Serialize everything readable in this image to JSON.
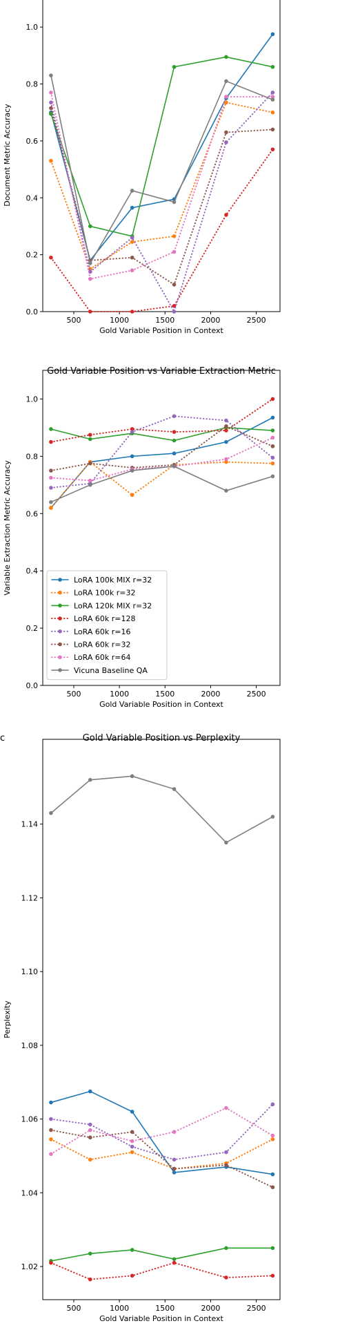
{
  "chart_data": [
    {
      "type": "line",
      "title": "",
      "panel_label": "",
      "xlabel": "Gold Variable Position in Context",
      "ylabel": "Document Metric Accuracy",
      "xlim": [
        160,
        2760
      ],
      "ylim": [
        0,
        1.1
      ],
      "xticks": [
        500,
        1000,
        1500,
        2000,
        2500
      ],
      "yticks": [
        0.0,
        0.2,
        0.4,
        0.6,
        0.8,
        1.0
      ],
      "grid": false,
      "x": [
        250,
        680,
        1140,
        1600,
        2170,
        2680
      ],
      "series": [
        {
          "name": "LoRA 100k MIX r=32",
          "values": [
            0.7,
            0.18,
            0.365,
            0.395,
            0.75,
            0.975
          ]
        },
        {
          "name": "LoRA 100k r=32",
          "values": [
            0.53,
            0.15,
            0.245,
            0.265,
            0.735,
            0.7
          ]
        },
        {
          "name": "LoRA 120k MIX r=32",
          "values": [
            0.695,
            0.3,
            0.265,
            0.86,
            0.895,
            0.86
          ]
        },
        {
          "name": "LoRA 60k r=128",
          "values": [
            0.19,
            0.0,
            0.0,
            0.02,
            0.34,
            0.57
          ]
        },
        {
          "name": "LoRA 60k r=16",
          "values": [
            0.735,
            0.14,
            0.26,
            0.0,
            0.595,
            0.77
          ]
        },
        {
          "name": "LoRA 60k r=32",
          "values": [
            0.715,
            0.18,
            0.19,
            0.095,
            0.63,
            0.64
          ]
        },
        {
          "name": "LoRA 60k r=64",
          "values": [
            0.77,
            0.115,
            0.145,
            0.21,
            0.755,
            0.755
          ]
        },
        {
          "name": "Vicuna Baseline QA",
          "values": [
            0.83,
            0.17,
            0.425,
            0.385,
            0.81,
            0.745
          ]
        }
      ]
    },
    {
      "type": "line",
      "title": "Gold Variable Position vs Variable Extraction Metric",
      "panel_label": "",
      "xlabel": "Gold Variable Position in Context",
      "ylabel": "Variable Extraction Metric Accuracy",
      "xlim": [
        160,
        2760
      ],
      "ylim": [
        0,
        1.1
      ],
      "xticks": [
        500,
        1000,
        1500,
        2000,
        2500
      ],
      "yticks": [
        0.0,
        0.2,
        0.4,
        0.6,
        0.8,
        1.0
      ],
      "grid": false,
      "legend": "lower-left",
      "x": [
        250,
        680,
        1140,
        1600,
        2170,
        2680
      ],
      "series": [
        {
          "name": "LoRA 100k MIX r=32",
          "values": [
            0.62,
            0.78,
            0.8,
            0.81,
            0.85,
            0.935
          ]
        },
        {
          "name": "LoRA 100k r=32",
          "values": [
            0.62,
            0.78,
            0.665,
            0.77,
            0.78,
            0.775
          ]
        },
        {
          "name": "LoRA 120k MIX r=32",
          "values": [
            0.895,
            0.86,
            0.88,
            0.855,
            0.9,
            0.89
          ]
        },
        {
          "name": "LoRA 60k r=128",
          "values": [
            0.85,
            0.875,
            0.895,
            0.885,
            0.89,
            1.0
          ]
        },
        {
          "name": "LoRA 60k r=16",
          "values": [
            0.69,
            0.705,
            0.885,
            0.94,
            0.925,
            0.795
          ]
        },
        {
          "name": "LoRA 60k r=32",
          "values": [
            0.75,
            0.775,
            0.76,
            0.77,
            0.905,
            0.835
          ]
        },
        {
          "name": "LoRA 60k r=64",
          "values": [
            0.725,
            0.715,
            0.755,
            0.765,
            0.79,
            0.865
          ]
        },
        {
          "name": "Vicuna Baseline QA",
          "values": [
            0.64,
            0.7,
            0.75,
            0.765,
            0.68,
            0.73
          ]
        }
      ]
    },
    {
      "type": "line",
      "title": "Gold Variable Position vs Perplexity",
      "panel_label": "c",
      "xlabel": "Gold Variable Position in Context",
      "ylabel": "Perplexity",
      "xlim": [
        160,
        2760
      ],
      "ylim": [
        1.011,
        1.163
      ],
      "xticks": [
        500,
        1000,
        1500,
        2000,
        2500
      ],
      "yticks": [
        1.02,
        1.04,
        1.06,
        1.08,
        1.1,
        1.12,
        1.14
      ],
      "grid": false,
      "x": [
        250,
        680,
        1140,
        1600,
        2170,
        2680
      ],
      "series": [
        {
          "name": "LoRA 100k MIX r=32",
          "values": [
            1.0645,
            1.0675,
            1.062,
            1.0455,
            1.047,
            1.045
          ]
        },
        {
          "name": "LoRA 100k r=32",
          "values": [
            1.0545,
            1.049,
            1.051,
            1.0465,
            1.048,
            1.0545
          ]
        },
        {
          "name": "LoRA 120k MIX r=32",
          "values": [
            1.0215,
            1.0235,
            1.0245,
            1.022,
            1.025,
            1.025
          ]
        },
        {
          "name": "LoRA 60k r=128",
          "values": [
            1.021,
            1.0165,
            1.0175,
            1.021,
            1.017,
            1.0175
          ]
        },
        {
          "name": "LoRA 60k r=16",
          "values": [
            1.06,
            1.0585,
            1.0525,
            1.049,
            1.051,
            1.064
          ]
        },
        {
          "name": "LoRA 60k r=32",
          "values": [
            1.057,
            1.055,
            1.0565,
            1.0465,
            1.0475,
            1.0415
          ]
        },
        {
          "name": "LoRA 60k r=64",
          "values": [
            1.0505,
            1.057,
            1.054,
            1.0565,
            1.063,
            1.0555
          ]
        },
        {
          "name": "Vicuna Baseline QA",
          "values": [
            1.143,
            1.152,
            1.153,
            1.1495,
            1.135,
            1.142
          ]
        }
      ]
    }
  ],
  "styles": {
    "colors": [
      "#1f77b4",
      "#ff7f0e",
      "#2ca02c",
      "#d62728",
      "#9467bd",
      "#8c564b",
      "#e377c2",
      "#7f7f7f"
    ],
    "dashes": [
      "solid",
      "dotted",
      "solid",
      "dotted",
      "dotted",
      "dotted",
      "dotted",
      "solid"
    ]
  }
}
